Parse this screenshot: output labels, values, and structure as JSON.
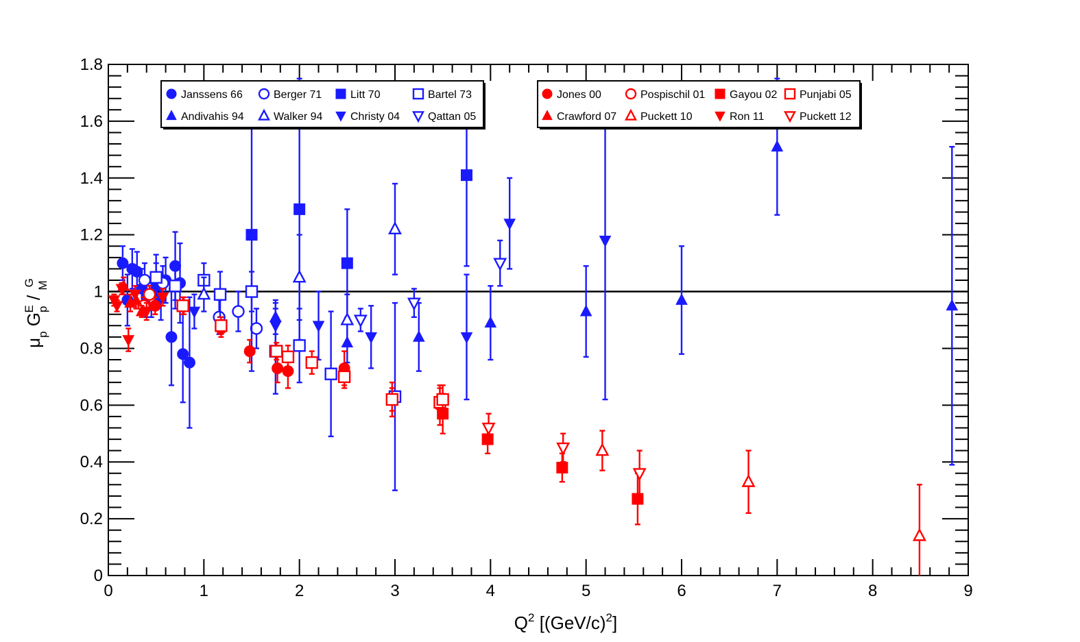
{
  "chart_data": {
    "type": "scatter",
    "title": "",
    "xlabel": {
      "main": "Q",
      "sup": "2",
      "unit_pre": " [(GeV/c)",
      "unit_sup": "2",
      "unit_post": "]"
    },
    "ylabel": "μp GEp / GMp",
    "xlim": [
      0,
      9
    ],
    "ylim": [
      0,
      1.8
    ],
    "x_ticks": [
      "0",
      "1",
      "2",
      "3",
      "4",
      "5",
      "6",
      "7",
      "8",
      "9"
    ],
    "y_ticks": [
      "0",
      "0.2",
      "0.4",
      "0.6",
      "0.8",
      "1",
      "1.2",
      "1.4",
      "1.6",
      "1.8"
    ],
    "reference_line": {
      "y": 1.0
    },
    "colors": {
      "blue": "#1a1aff",
      "red": "#ff0000"
    },
    "legend_position": "top",
    "series": [
      {
        "name": "Janssens 66",
        "color": "blue",
        "marker": "circle-filled",
        "legend": 0,
        "points": [
          [
            0.15,
            1.1,
            0.06
          ],
          [
            0.2,
            0.97,
            0.09
          ],
          [
            0.25,
            1.08,
            0.07
          ],
          [
            0.3,
            1.07,
            0.07
          ],
          [
            0.35,
            1.01,
            0.07
          ],
          [
            0.4,
            0.98,
            0.07
          ],
          [
            0.5,
            1.02,
            0.08
          ],
          [
            0.55,
            0.98,
            0.08
          ],
          [
            0.6,
            1.04,
            0.08
          ],
          [
            0.66,
            0.84,
            0.17
          ],
          [
            0.7,
            1.09,
            0.12
          ],
          [
            0.75,
            1.03,
            0.14
          ],
          [
            0.78,
            0.78,
            0.17
          ],
          [
            0.85,
            0.75,
            0.23
          ]
        ]
      },
      {
        "name": "Berger 71",
        "color": "blue",
        "marker": "circle-open",
        "legend": 0,
        "points": [
          [
            0.38,
            1.04,
            0.06
          ],
          [
            0.45,
            0.98,
            0.07
          ],
          [
            0.57,
            1.03,
            0.06
          ],
          [
            1.16,
            0.91,
            0.06
          ],
          [
            1.36,
            0.93,
            0.07
          ],
          [
            1.55,
            0.87,
            0.07
          ]
        ]
      },
      {
        "name": "Litt 70",
        "color": "blue",
        "marker": "square-filled",
        "legend": 0,
        "points": [
          [
            1.5,
            1.2,
            0.48
          ],
          [
            2.0,
            1.29,
            0.46
          ],
          [
            2.5,
            1.1,
            0.19
          ],
          [
            3.75,
            1.41,
            0.32
          ]
        ]
      },
      {
        "name": "Bartel 73",
        "color": "blue",
        "marker": "square-open",
        "legend": 0,
        "points": [
          [
            0.5,
            1.05,
            0.08
          ],
          [
            0.7,
            1.02,
            0.08
          ],
          [
            1.0,
            1.04,
            0.06
          ],
          [
            1.17,
            0.99,
            0.08
          ],
          [
            1.5,
            1.0,
            0.07
          ],
          [
            1.75,
            0.79,
            0.15
          ],
          [
            2.0,
            0.81,
            0.13
          ],
          [
            2.33,
            0.71,
            0.22
          ],
          [
            3.0,
            0.63,
            0.33
          ]
        ]
      },
      {
        "name": "Andivahis 94",
        "color": "blue",
        "marker": "triangle-up-filled",
        "legend": 0,
        "points": [
          [
            1.75,
            0.91,
            0.06
          ],
          [
            2.5,
            0.82,
            0.07
          ],
          [
            3.25,
            0.84,
            0.12
          ],
          [
            4.0,
            0.89,
            0.13
          ],
          [
            5.0,
            0.93,
            0.16
          ],
          [
            6.0,
            0.97,
            0.19
          ],
          [
            7.0,
            1.51,
            0.24
          ],
          [
            8.83,
            0.95,
            0.56
          ]
        ]
      },
      {
        "name": "Walker 94",
        "color": "blue",
        "marker": "triangle-up-open",
        "legend": 0,
        "points": [
          [
            1.0,
            0.99,
            0.06
          ],
          [
            2.0,
            1.05,
            0.15
          ],
          [
            2.5,
            0.9,
            0.09
          ],
          [
            3.0,
            1.22,
            0.16
          ]
        ]
      },
      {
        "name": "Christy 04",
        "color": "blue",
        "marker": "triangle-down-filled",
        "legend": 0,
        "points": [
          [
            0.9,
            0.93,
            0.06
          ],
          [
            1.75,
            0.88,
            0.08
          ],
          [
            2.2,
            0.88,
            0.12
          ],
          [
            2.75,
            0.84,
            0.11
          ],
          [
            3.75,
            0.84,
            0.22
          ],
          [
            4.2,
            1.24,
            0.16
          ],
          [
            5.2,
            1.18,
            0.56
          ]
        ]
      },
      {
        "name": "Qattan 05",
        "color": "blue",
        "marker": "triangle-down-open",
        "legend": 0,
        "points": [
          [
            2.64,
            0.9,
            0.04
          ],
          [
            3.2,
            0.96,
            0.05
          ],
          [
            4.1,
            1.1,
            0.08
          ]
        ]
      },
      {
        "name": "Jones 00",
        "color": "red",
        "marker": "circle-filled",
        "legend": 1,
        "points": [
          [
            0.49,
            0.95,
            0.03
          ],
          [
            0.79,
            0.95,
            0.03
          ],
          [
            1.18,
            0.87,
            0.03
          ],
          [
            1.48,
            0.79,
            0.04
          ],
          [
            1.77,
            0.73,
            0.05
          ],
          [
            1.88,
            0.72,
            0.06
          ],
          [
            2.47,
            0.73,
            0.06
          ],
          [
            2.97,
            0.62,
            0.06
          ],
          [
            3.47,
            0.6,
            0.07
          ]
        ]
      },
      {
        "name": "Pospischil 01",
        "color": "red",
        "marker": "circle-open",
        "legend": 1,
        "points": [
          [
            0.37,
            0.95,
            0.03
          ],
          [
            0.43,
            0.99,
            0.03
          ]
        ]
      },
      {
        "name": "Gayou 02",
        "color": "red",
        "marker": "square-filled",
        "legend": 1,
        "points": [
          [
            3.5,
            0.57,
            0.07
          ],
          [
            3.97,
            0.48,
            0.05
          ],
          [
            4.75,
            0.38,
            0.05
          ],
          [
            5.54,
            0.27,
            0.09
          ]
        ]
      },
      {
        "name": "Punjabi 05",
        "color": "red",
        "marker": "square-open",
        "legend": 1,
        "points": [
          [
            0.78,
            0.95,
            0.03
          ],
          [
            1.18,
            0.88,
            0.03
          ],
          [
            1.76,
            0.79,
            0.03
          ],
          [
            1.88,
            0.77,
            0.04
          ],
          [
            2.13,
            0.75,
            0.04
          ],
          [
            2.47,
            0.7,
            0.04
          ],
          [
            2.97,
            0.62,
            0.04
          ],
          [
            3.47,
            0.61,
            0.05
          ],
          [
            3.5,
            0.62,
            0.05
          ]
        ]
      },
      {
        "name": "Crawford 07",
        "color": "red",
        "marker": "triangle-up-filled",
        "legend": 1,
        "points": [
          [
            0.16,
            1.02,
            0.03
          ],
          [
            0.23,
            0.96,
            0.03
          ],
          [
            0.29,
            0.97,
            0.03
          ],
          [
            0.35,
            0.93,
            0.02
          ]
        ]
      },
      {
        "name": "Puckett 10",
        "color": "red",
        "marker": "triangle-up-open",
        "legend": 1,
        "points": [
          [
            5.17,
            0.44,
            0.07
          ],
          [
            6.7,
            0.33,
            0.11
          ],
          [
            8.49,
            0.14,
            0.18
          ]
        ]
      },
      {
        "name": "Ron 11",
        "color": "red",
        "marker": "triangle-down-filled",
        "legend": 1,
        "points": [
          [
            0.06,
            0.97,
            0.02
          ],
          [
            0.09,
            0.95,
            0.02
          ],
          [
            0.14,
            1.01,
            0.02
          ],
          [
            0.21,
            0.83,
            0.04
          ],
          [
            0.28,
            0.99,
            0.03
          ],
          [
            0.4,
            0.93,
            0.03
          ],
          [
            0.57,
            0.98,
            0.03
          ]
        ]
      },
      {
        "name": "Puckett 12",
        "color": "red",
        "marker": "triangle-down-open",
        "legend": 1,
        "points": [
          [
            3.98,
            0.52,
            0.05
          ],
          [
            4.76,
            0.45,
            0.05
          ],
          [
            5.56,
            0.36,
            0.08
          ]
        ]
      }
    ]
  }
}
